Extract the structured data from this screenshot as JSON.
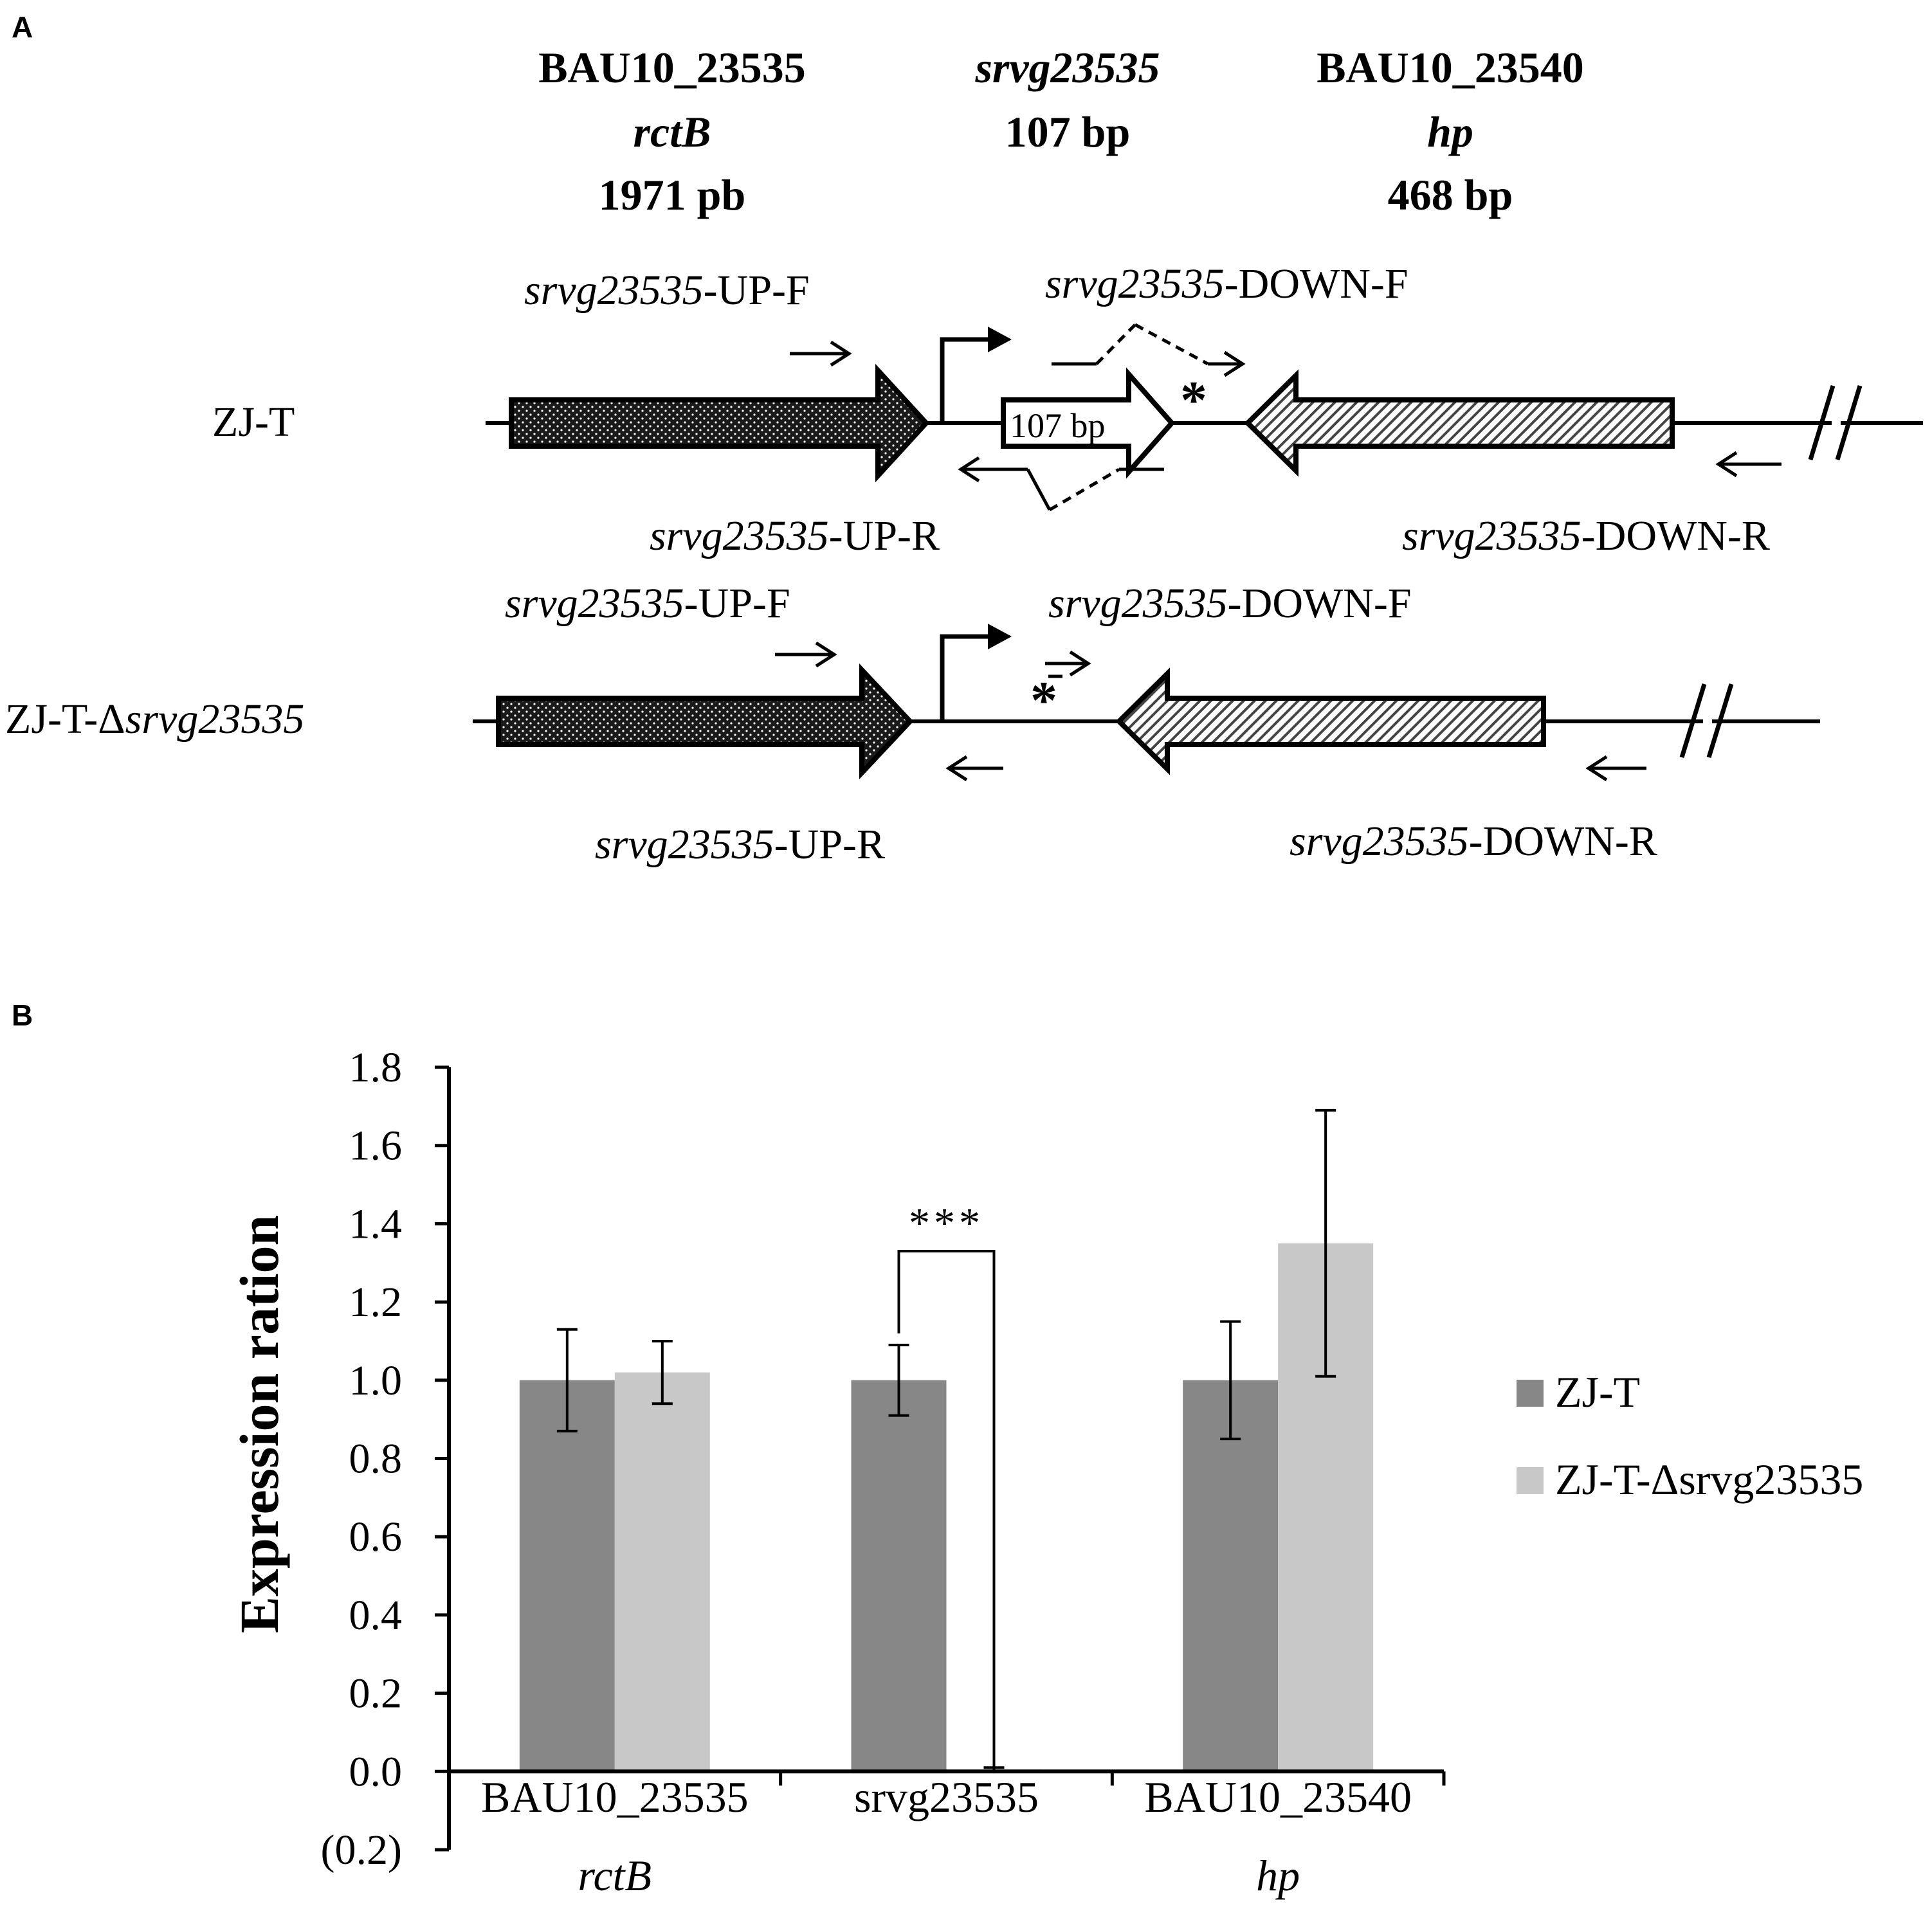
{
  "panel_a": {
    "label": "A",
    "gene_headers": [
      {
        "name": "BAU10_23535",
        "alias": "rctB",
        "length": "1971 pb"
      },
      {
        "name": "srvg23535",
        "length": "107 bp"
      },
      {
        "name": "BAU10_23540",
        "alias": "hp",
        "length": "468 bp"
      }
    ],
    "strains": [
      {
        "name": "ZJ-T",
        "primers": {
          "up_f": {
            "italic": "srvg23535",
            "suffix": "-UP-F"
          },
          "up_r": {
            "italic": "srvg23535",
            "suffix": "-UP-R"
          },
          "down_f": {
            "italic": "srvg23535",
            "suffix": "-DOWN-F"
          },
          "down_r": {
            "italic": "srvg23535",
            "suffix": "-DOWN-R"
          }
        },
        "srna_box_label": "107 bp",
        "mark": "*"
      },
      {
        "name_prefix": "ZJ-T-Δ",
        "name_italic": "srvg23535",
        "primers": {
          "up_f": {
            "italic": "srvg23535",
            "suffix": "-UP-F"
          },
          "up_r": {
            "italic": "srvg23535",
            "suffix": "-UP-R"
          },
          "down_f": {
            "italic": "srvg23535",
            "suffix": "-DOWN-F"
          },
          "down_r": {
            "italic": "srvg23535",
            "suffix": "-DOWN-R"
          }
        },
        "mark": "*"
      }
    ]
  },
  "panel_b": {
    "label": "B",
    "significance": "***",
    "category_sublabels": [
      "rctB",
      "",
      "hp"
    ],
    "chart_data": {
      "type": "bar",
      "categories": [
        "BAU10_23535",
        "srvg23535",
        "BAU10_23540"
      ],
      "series": [
        {
          "name": "ZJ-T",
          "color": "#878787",
          "values": [
            1.0,
            1.0,
            1.0
          ],
          "errors": [
            0.13,
            0.09,
            0.15
          ]
        },
        {
          "name": "ZJ-T-Δsrvg23535",
          "color": "#c8c8c8",
          "values": [
            1.02,
            0.005,
            1.35
          ],
          "errors": [
            0.08,
            0.005,
            0.34
          ]
        }
      ],
      "ylabel": "Expression ration",
      "ylim": [
        -0.2,
        1.8
      ],
      "yticks": [
        -0.2,
        0.0,
        0.2,
        0.4,
        0.6,
        0.8,
        1.0,
        1.2,
        1.4,
        1.6,
        1.8
      ],
      "ytick_labels": [
        "(0.2)",
        "0.0",
        "0.2",
        "0.4",
        "0.6",
        "0.8",
        "1.0",
        "1.2",
        "1.4",
        "1.6",
        "1.8"
      ],
      "legend_position": "right",
      "grid": false
    }
  }
}
